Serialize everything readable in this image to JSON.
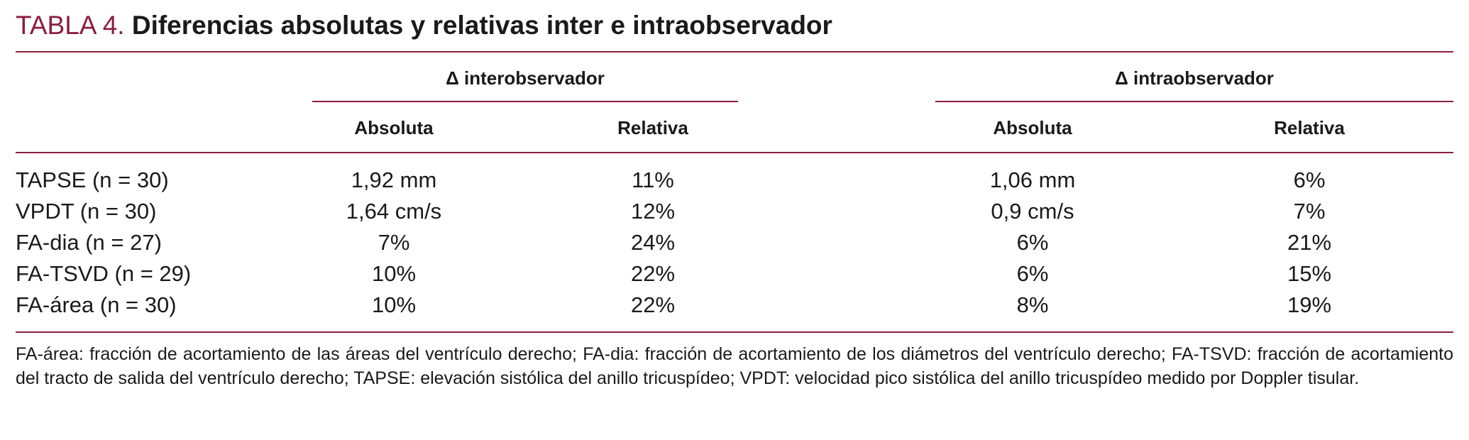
{
  "title": {
    "label": "TABLA 4.",
    "text": "Diferencias absolutas y relativas inter e intraobservador"
  },
  "table": {
    "groups": [
      "Δ interobservador",
      "Δ intraobservador"
    ],
    "subheaders": [
      "Absoluta",
      "Relativa",
      "Absoluta",
      "Relativa"
    ],
    "rows": [
      [
        "TAPSE (n = 30)",
        "1,92 mm",
        "11%",
        "1,06 mm",
        "6%"
      ],
      [
        "VPDT (n = 30)",
        "1,64 cm/s",
        "12%",
        "0,9 cm/s",
        "7%"
      ],
      [
        "FA-dia (n = 27)",
        "7%",
        "24%",
        "6%",
        "21%"
      ],
      [
        "FA-TSVD (n = 29)",
        "10%",
        "22%",
        "6%",
        "15%"
      ],
      [
        "FA-área (n = 30)",
        "10%",
        "22%",
        "8%",
        "19%"
      ]
    ]
  },
  "footnote": "FA-área: fracción de acortamiento de las áreas del ventrículo derecho; FA-dia: fracción de acortamiento de los diámetros del ventrículo derecho; FA-TSVD: fracción de acortamiento del tracto de salida del ventrículo derecho; TAPSE: elevación sistólica del anillo tricuspídeo; VPDT: velocidad pico sistólica del anillo tricuspídeo medido por Doppler tisular.",
  "colors": {
    "accent": "#8b1e3f",
    "text": "#1a1a1a"
  }
}
